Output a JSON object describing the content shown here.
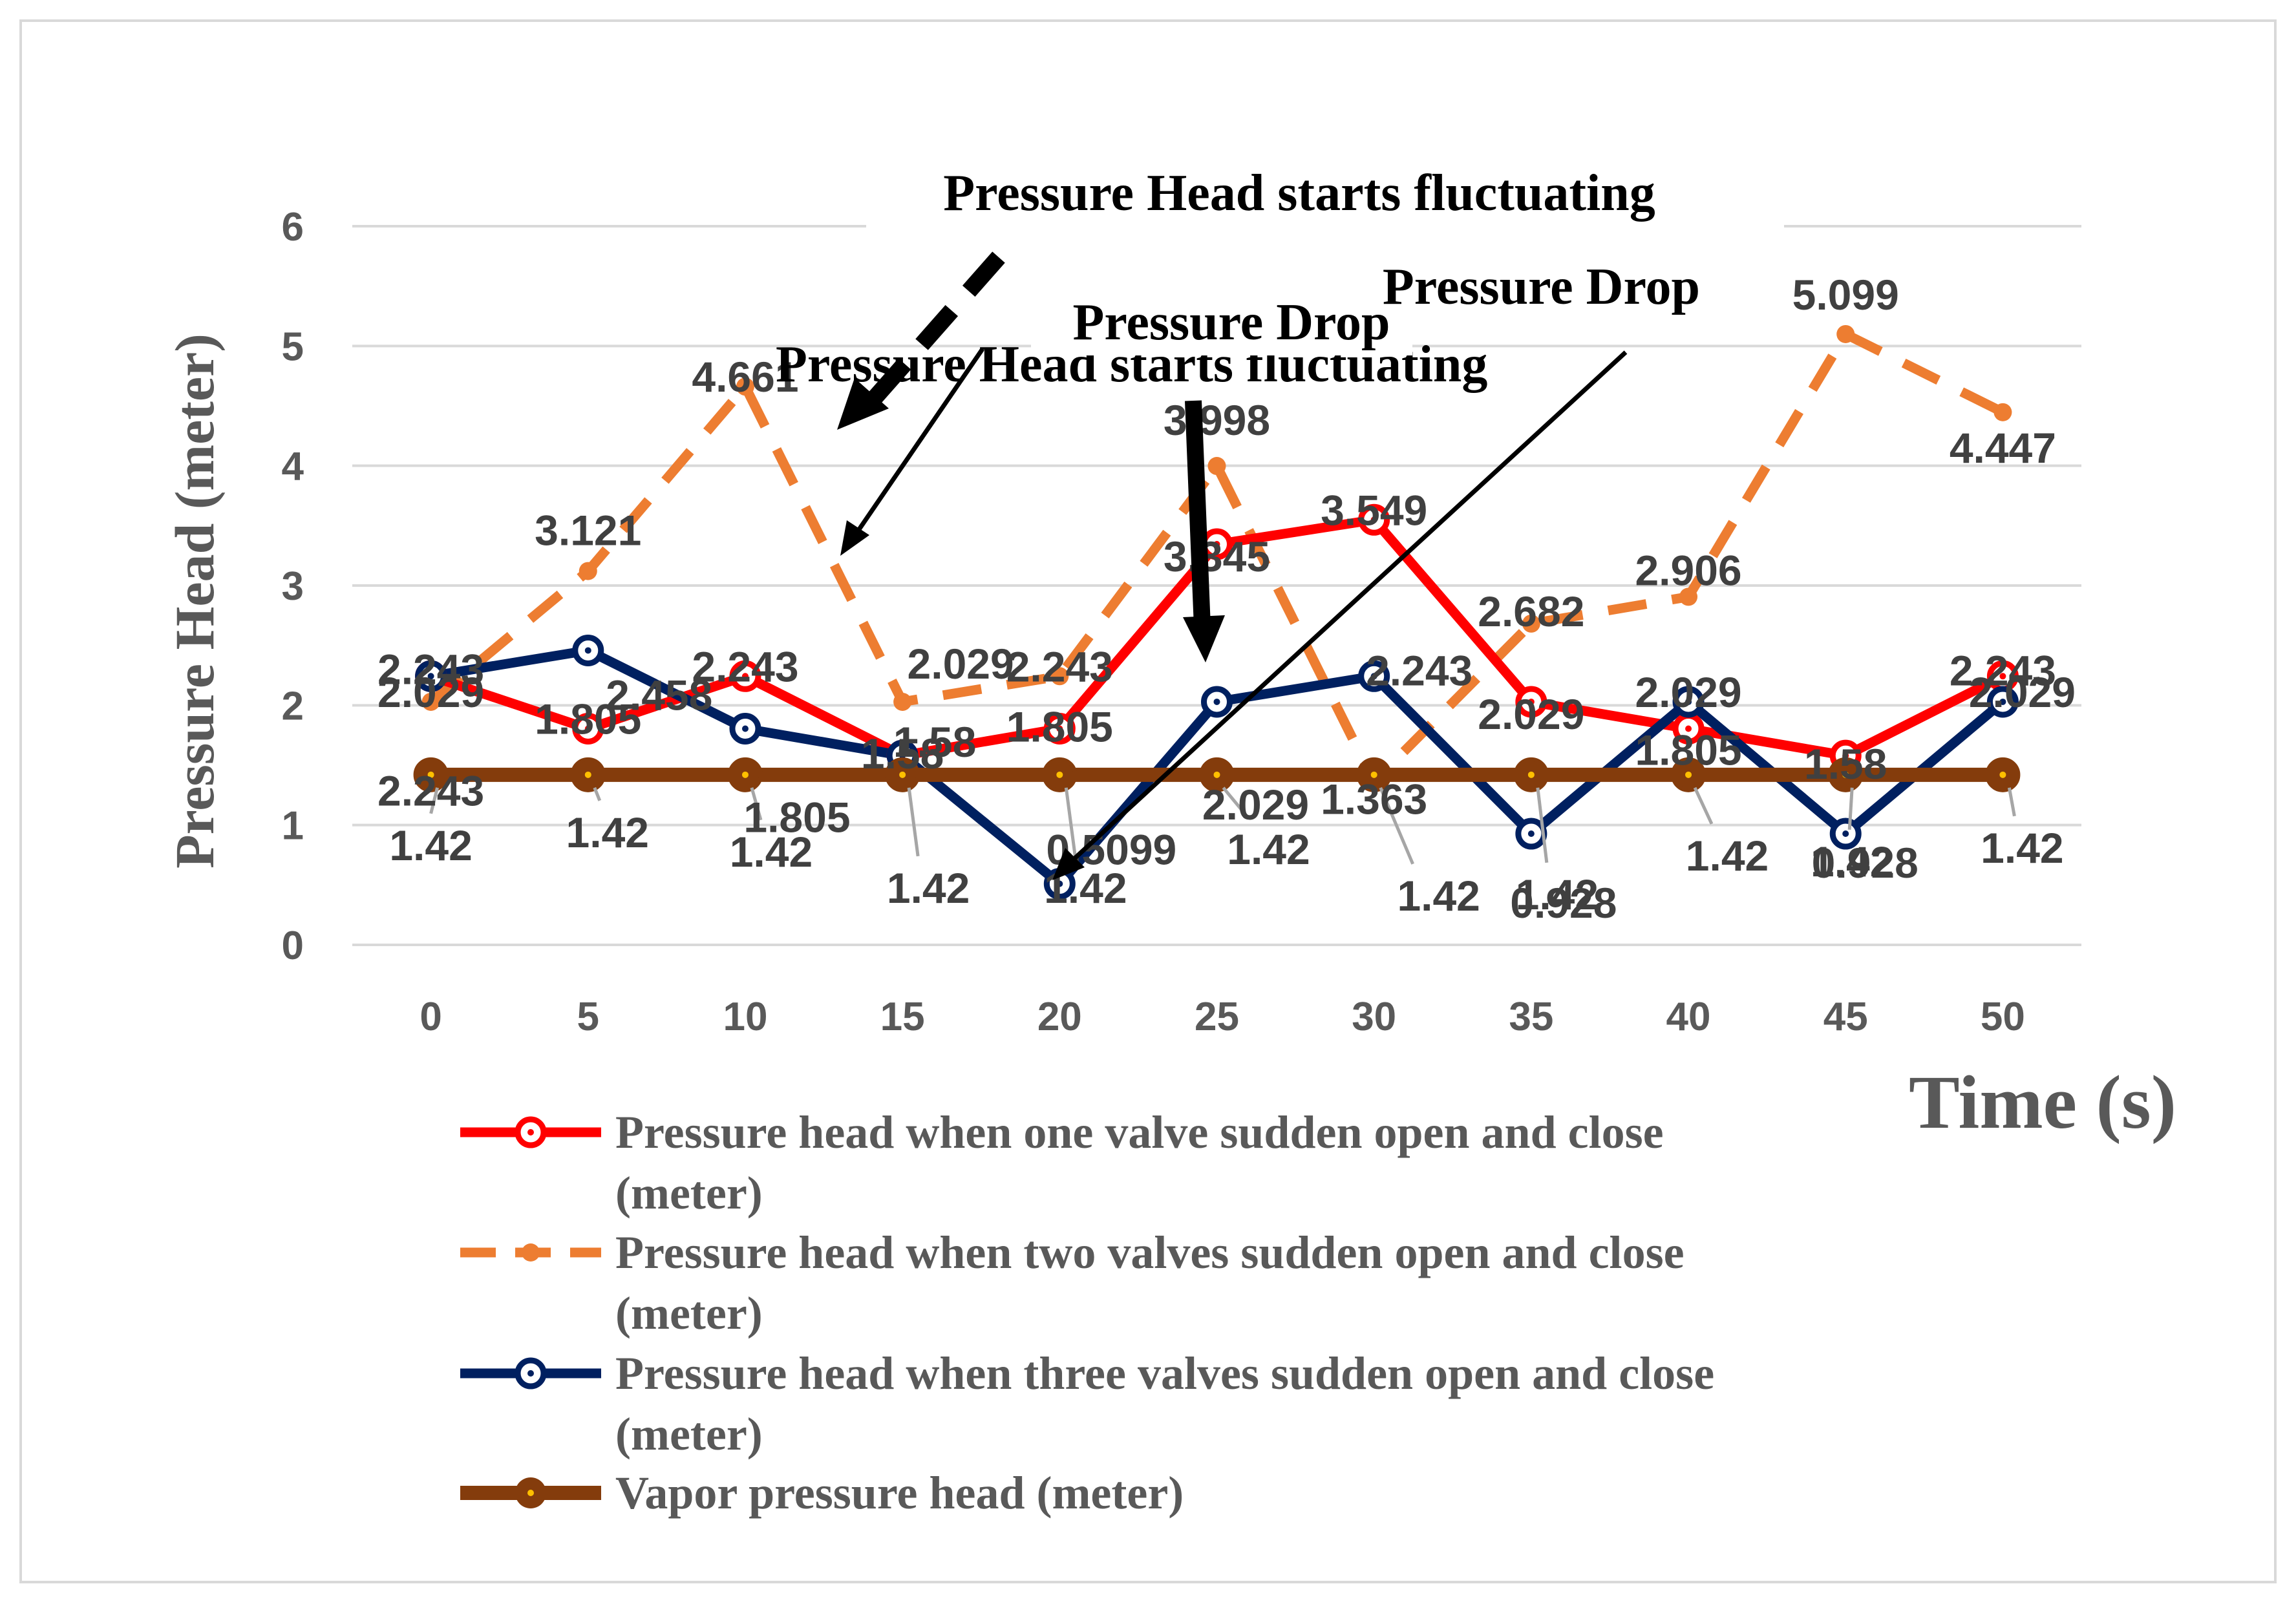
{
  "chart_data": {
    "type": "line",
    "title": "",
    "xlabel": "Time (s)",
    "ylabel": "Pressure Head (meter)",
    "x": [
      0,
      5,
      10,
      15,
      20,
      25,
      30,
      35,
      40,
      45,
      50
    ],
    "ylim": [
      0,
      6
    ],
    "yticks": [
      0,
      1,
      2,
      3,
      4,
      5,
      6
    ],
    "grid": true,
    "legend_position": "bottom",
    "series": [
      {
        "name": "Pressure head when one valve sudden open and close (meter)",
        "legend_line1": "Pressure head when one valve sudden open and close",
        "legend_line2": "(meter)",
        "color": "#ff0000",
        "dashed": false,
        "values": [
          2.243,
          1.805,
          2.243,
          1.58,
          1.805,
          3.345,
          3.549,
          2.029,
          1.805,
          1.58,
          2.243
        ],
        "labels": [
          "2.243",
          "1.805",
          "2.243",
          "1.58",
          "1.805",
          "3.345",
          "3.549",
          "2.029",
          "1.805",
          "1.58",
          "2.243"
        ]
      },
      {
        "name": "Pressure head when two valves sudden open and close (meter)",
        "legend_line1": "Pressure head when two valves sudden open and close",
        "legend_line2": "(meter)",
        "color": "#ed7d31",
        "dashed": true,
        "values": [
          2.029,
          3.121,
          4.661,
          2.029,
          2.243,
          3.998,
          1.363,
          2.682,
          2.906,
          5.099,
          4.447
        ],
        "labels": [
          "2.029",
          "3.121",
          "4.661",
          "2.029",
          "2.243",
          "3.998",
          "1.363",
          "2.682",
          "2.906",
          "5.099",
          "4.447"
        ]
      },
      {
        "name": "Pressure head when three valves sudden open and close (meter)",
        "legend_line1": "Pressure head when three valves sudden open and close",
        "legend_line2": "(meter)",
        "color": "#002060",
        "dashed": false,
        "values": [
          2.243,
          2.458,
          1.805,
          1.58,
          0.5099,
          2.029,
          2.243,
          0.928,
          2.029,
          0.928,
          2.029
        ],
        "labels": [
          "2.243",
          "2.458",
          "1.805",
          "1.58",
          "0.5099",
          "2.029",
          "2.243",
          "0.928",
          "2.029",
          "0.928",
          "2.029"
        ]
      },
      {
        "name": "Vapor pressure head (meter)",
        "legend_line1": "Vapor pressure head (meter)",
        "legend_line2": "",
        "color": "#843c0c",
        "dashed": false,
        "values": [
          1.42,
          1.42,
          1.42,
          1.42,
          1.42,
          1.42,
          1.42,
          1.42,
          1.42,
          1.42,
          1.42
        ],
        "labels": [
          "1.42",
          "1.42",
          "1.42",
          "1.42",
          "1.42",
          "1.42",
          "1.42",
          "1.42",
          "1.42",
          "1.42",
          "1.42"
        ]
      }
    ],
    "annotations": [
      {
        "text": "Pressure Head starts fluctuating"
      },
      {
        "text": "Pressure Head starts fluctuating"
      },
      {
        "text": "Pressure Drop"
      },
      {
        "text": "Pressure Drop"
      }
    ]
  }
}
